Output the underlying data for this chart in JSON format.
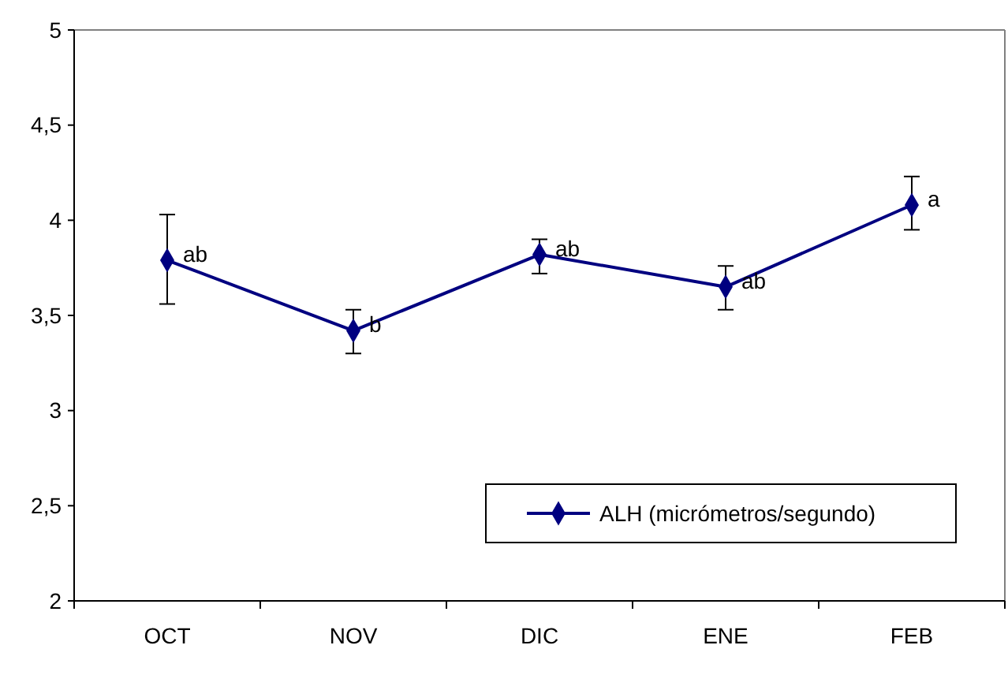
{
  "chart_data": {
    "type": "line",
    "categories": [
      "OCT",
      "NOV",
      "DIC",
      "ENE",
      "FEB"
    ],
    "series": [
      {
        "name": "ALH (micrómetros/segundo)",
        "color": "#000080",
        "values": [
          3.79,
          3.42,
          3.82,
          3.65,
          4.08
        ],
        "errors": [
          [
            3.56,
            4.03
          ],
          [
            3.3,
            3.53
          ],
          [
            3.72,
            3.9
          ],
          [
            3.53,
            3.76
          ],
          [
            3.95,
            4.23
          ]
        ]
      }
    ],
    "ylim": [
      2,
      5
    ],
    "yticks": [
      2,
      {
        "value": 2.5,
        "label": "2,5"
      },
      3,
      {
        "value": 3.5,
        "label": "3,5"
      },
      4,
      {
        "value": 4.5,
        "label": "4,5"
      },
      5
    ],
    "marker": "diamond",
    "grid": false,
    "legend": "bottom right",
    "annotations": [
      {
        "text": "ab",
        "x": "OCT",
        "y": 3.79
      },
      {
        "text": "b",
        "x": "NOV",
        "y": 3.42
      },
      {
        "text": "ab",
        "x": "DIC",
        "y": 3.82
      },
      {
        "text": "ab",
        "x": "ENE",
        "y": 3.65
      },
      {
        "text": "a",
        "x": "FEB",
        "y": 4.08
      }
    ]
  }
}
